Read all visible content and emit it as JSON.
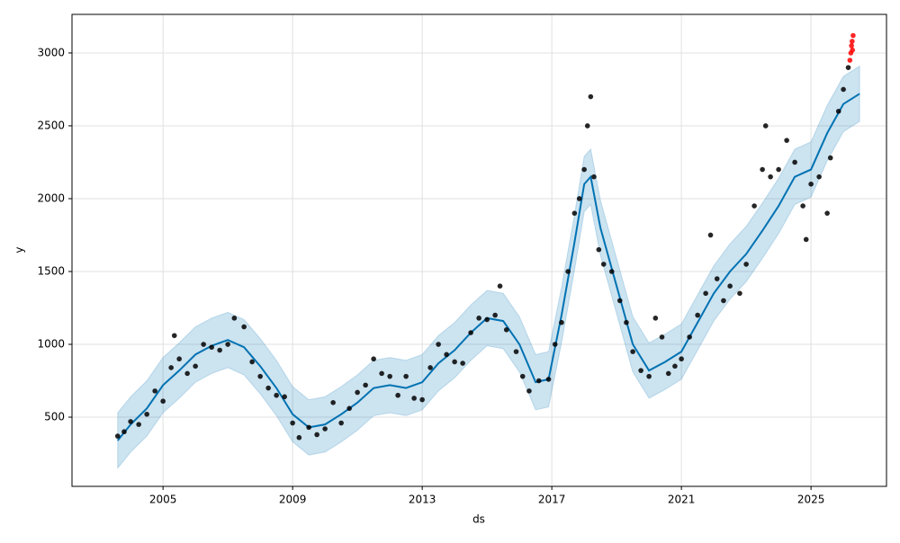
{
  "chart_data": {
    "type": "forecast",
    "x_label": "ds",
    "y_label": "y",
    "xlim": [
      2002.19,
      2027.33
    ],
    "xticks": [
      2005,
      2009,
      2013,
      2017,
      2021,
      2025
    ],
    "ylim": [
      25,
      3265
    ],
    "yticks": [
      500,
      1000,
      1500,
      2000,
      2500,
      3000
    ],
    "grid": true,
    "series": [
      {
        "kind": "band",
        "color": "#0072b2",
        "x": [
          2003.6,
          2004,
          2004.5,
          2005,
          2005.5,
          2006,
          2006.5,
          2007,
          2007.5,
          2008,
          2008.5,
          2009,
          2009.5,
          2010,
          2010.5,
          2011,
          2011.5,
          2012,
          2012.5,
          2013,
          2013.5,
          2014,
          2014.5,
          2015,
          2015.5,
          2016,
          2016.5,
          2016.9,
          2017.3,
          2017.7,
          2018,
          2018.2,
          2018.5,
          2019,
          2019.5,
          2020,
          2020.5,
          2021,
          2021.5,
          2022,
          2022.5,
          2023,
          2023.5,
          2024,
          2024.5,
          2025,
          2025.5,
          2026,
          2026.5
        ],
        "values": [
          340,
          450,
          560,
          720,
          820,
          930,
          990,
          1030,
          980,
          850,
          700,
          520,
          430,
          450,
          520,
          600,
          700,
          720,
          700,
          740,
          870,
          960,
          1080,
          1180,
          1160,
          1000,
          740,
          760,
          1200,
          1700,
          2100,
          2150,
          1800,
          1400,
          1000,
          820,
          880,
          950,
          1150,
          1350,
          1500,
          1620,
          1780,
          1950,
          2150,
          2200,
          2450,
          2650,
          2720
        ],
        "upper": [
          530,
          640,
          750,
          910,
          1010,
          1120,
          1180,
          1220,
          1170,
          1040,
          890,
          710,
          620,
          640,
          710,
          790,
          890,
          910,
          890,
          930,
          1060,
          1150,
          1270,
          1370,
          1350,
          1190,
          930,
          950,
          1390,
          1890,
          2290,
          2340,
          1990,
          1590,
          1190,
          1010,
          1070,
          1140,
          1340,
          1540,
          1690,
          1810,
          1970,
          2140,
          2340,
          2390,
          2640,
          2840,
          2910
        ],
        "lower": [
          150,
          260,
          370,
          530,
          630,
          740,
          800,
          840,
          790,
          660,
          510,
          330,
          240,
          260,
          330,
          410,
          510,
          530,
          510,
          550,
          680,
          770,
          890,
          990,
          970,
          810,
          550,
          570,
          1010,
          1510,
          1910,
          1960,
          1610,
          1210,
          810,
          630,
          690,
          760,
          960,
          1160,
          1310,
          1430,
          1590,
          1760,
          1960,
          2010,
          2260,
          2460,
          2530
        ]
      },
      {
        "kind": "points",
        "color": "#000000",
        "x": [
          2003.6,
          2003.8,
          2004.0,
          2004.25,
          2004.5,
          2004.75,
          2005.0,
          2005.25,
          2005.35,
          2005.5,
          2005.75,
          2006.0,
          2006.25,
          2006.5,
          2006.75,
          2007.0,
          2007.2,
          2007.5,
          2007.75,
          2008.0,
          2008.25,
          2008.5,
          2008.75,
          2009.0,
          2009.2,
          2009.5,
          2009.75,
          2010.0,
          2010.25,
          2010.5,
          2010.75,
          2011.0,
          2011.25,
          2011.5,
          2011.75,
          2012.0,
          2012.25,
          2012.5,
          2012.75,
          2013.0,
          2013.25,
          2013.5,
          2013.75,
          2014.0,
          2014.25,
          2014.5,
          2014.75,
          2015.0,
          2015.25,
          2015.4,
          2015.6,
          2015.9,
          2016.1,
          2016.3,
          2016.6,
          2016.9,
          2017.1,
          2017.3,
          2017.5,
          2017.7,
          2017.85,
          2018.0,
          2018.1,
          2018.2,
          2018.3,
          2018.45,
          2018.6,
          2018.85,
          2019.1,
          2019.3,
          2019.5,
          2019.75,
          2020.0,
          2020.2,
          2020.4,
          2020.6,
          2020.8,
          2021.0,
          2021.25,
          2021.5,
          2021.75,
          2021.9,
          2022.1,
          2022.3,
          2022.5,
          2022.8,
          2023.0,
          2023.25,
          2023.5,
          2023.6,
          2023.75,
          2024.0,
          2024.25,
          2024.5,
          2024.75,
          2024.85,
          2025.0,
          2025.25,
          2025.5,
          2025.6,
          2025.85,
          2026.0,
          2026.15
        ],
        "values": [
          370,
          400,
          470,
          450,
          520,
          680,
          610,
          840,
          1060,
          900,
          800,
          850,
          1000,
          980,
          960,
          1000,
          1180,
          1120,
          880,
          780,
          700,
          650,
          640,
          460,
          360,
          430,
          380,
          420,
          600,
          460,
          560,
          670,
          720,
          900,
          800,
          780,
          650,
          780,
          630,
          620,
          840,
          1000,
          930,
          880,
          870,
          1080,
          1180,
          1170,
          1200,
          1400,
          1100,
          950,
          780,
          680,
          750,
          760,
          1000,
          1150,
          1500,
          1900,
          2000,
          2200,
          2500,
          2700,
          2150,
          1650,
          1550,
          1500,
          1300,
          1150,
          950,
          820,
          780,
          1180,
          1050,
          800,
          850,
          900,
          1050,
          1200,
          1350,
          1750,
          1450,
          1300,
          1400,
          1350,
          1550,
          1950,
          2200,
          2500,
          2150,
          2200,
          2400,
          2250,
          1950,
          1720,
          2100,
          2150,
          1900,
          2280,
          2600,
          2750,
          2900
        ]
      },
      {
        "kind": "points",
        "color": "#ff0000",
        "x": [
          2026.2,
          2026.23,
          2026.25,
          2026.27,
          2026.3,
          2026.28
        ],
        "values": [
          2950,
          3000,
          3050,
          3080,
          3120,
          3020
        ]
      }
    ]
  }
}
